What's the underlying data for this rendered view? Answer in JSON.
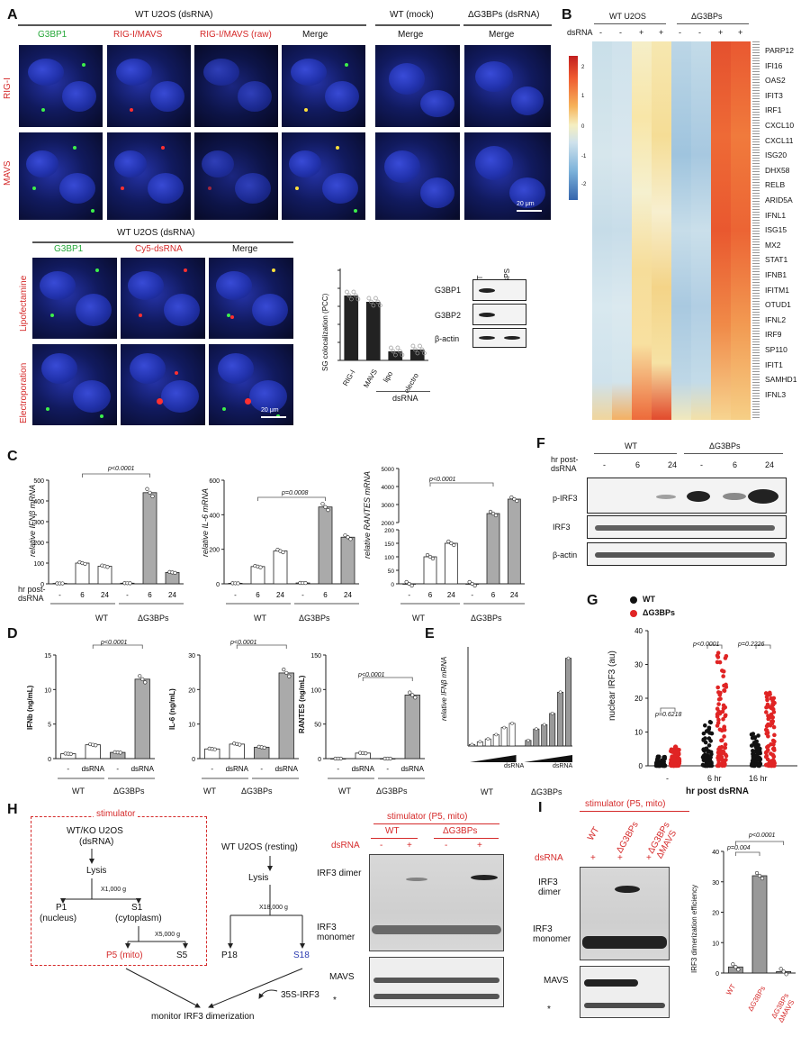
{
  "panels": [
    "A",
    "B",
    "C",
    "D",
    "E",
    "F",
    "G",
    "H",
    "I"
  ],
  "panelA": {
    "title_wt": "WT U2OS (dsRNA)",
    "title_mock": "WT (mock)",
    "title_ko": "ΔG3BPs (dsRNA)",
    "columns": [
      "G3BP1",
      "RIG-I/MAVS",
      "RIG-I/MAVS (raw)",
      "Merge"
    ],
    "merge": "Merge",
    "rows": [
      "RIG-I",
      "MAVS"
    ],
    "scale": "20 μm",
    "title_lower": "WT U2OS (dsRNA)",
    "lower_columns": [
      "G3BP1",
      "Cy5-dsRNA",
      "Merge"
    ],
    "lower_rows": [
      "Lipofectamine",
      "Electroporation"
    ],
    "chart_ylabel": "SG colocalization (PCC)",
    "chart_cats": [
      "RIG-I",
      "MAVS",
      "lipo",
      "electro"
    ],
    "chart_group": "dsRNA",
    "wb_lanes": [
      "WT",
      "ΔG3BPS"
    ],
    "wb_rows": [
      "G3BP1",
      "G3BP2",
      "β-actin"
    ]
  },
  "panelB": {
    "groups": [
      "WT U2OS",
      "ΔG3BPs"
    ],
    "dsrna_label": "dsRNA",
    "lanes": [
      "-",
      "-",
      "+",
      "+",
      "-",
      "-",
      "+",
      "+"
    ],
    "scale_ticks": [
      "2",
      "1",
      "0",
      "-1",
      "-2"
    ],
    "genes": [
      "PARP12",
      "IFI16",
      "OAS2",
      "IFIT3",
      "IRF1",
      "CXCL10",
      "CXCL11",
      "ISG20",
      "DHX58",
      "RELB",
      "ARID5A",
      "IFNL1",
      "ISG15",
      "MX2",
      "STAT1",
      "IFNB1",
      "IFITM1",
      "OTUD1",
      "IFNL2",
      "IRF9",
      "SP110",
      "IFIT1",
      "SAMHD1",
      "IFNL3"
    ]
  },
  "panelC": {
    "plots": [
      {
        "ylabel": "relative IFNβ mRNA",
        "p": "p<0.0001",
        "ticks": [
          "0",
          "100",
          "200",
          "300",
          "400",
          "500"
        ]
      },
      {
        "ylabel": "relative IL-6 mRNA",
        "p": "p=0.0008",
        "ticks": [
          "0",
          "200",
          "400",
          "600"
        ]
      },
      {
        "ylabel": "relative RANTES mRNA",
        "p": "p<0.0001",
        "ticks": [
          "0",
          "50",
          "100",
          "150",
          "200",
          "2000",
          "3000",
          "4000",
          "5000"
        ]
      }
    ],
    "hr_label": "hr post-dsRNA",
    "lanes": [
      "-",
      "6",
      "24",
      "-",
      "6",
      "24"
    ],
    "groups": [
      "WT",
      "ΔG3BPs"
    ]
  },
  "panelD": {
    "plots": [
      {
        "ylabel": "IFNb (ng/mL)",
        "p": "p<0.0001",
        "ticks": [
          "0",
          "5",
          "10",
          "15"
        ]
      },
      {
        "ylabel": "IL-6 (ng/mL)",
        "p": "p<0.0001",
        "ticks": [
          "0",
          "10",
          "20",
          "30"
        ]
      },
      {
        "ylabel": "RANTES (ng/mL)",
        "p": "p<0.0001",
        "ticks": [
          "0",
          "50",
          "100",
          "150"
        ]
      }
    ],
    "lanes": [
      "-",
      "dsRNA",
      "-",
      "dsRNA"
    ],
    "groups": [
      "WT",
      "ΔG3BPs"
    ]
  },
  "panelE": {
    "ylabel": "relative IFNβ mRNA",
    "groups": [
      "WT",
      "ΔG3BPs"
    ],
    "wedge": "dsRNA"
  },
  "panelF": {
    "hr_label": "hr post-dsRNA",
    "groups": [
      "WT",
      "ΔG3BPs"
    ],
    "lanes": [
      "-",
      "6",
      "24",
      "-",
      "6",
      "24"
    ],
    "rows": [
      "p-IRF3",
      "IRF3",
      "β-actin"
    ]
  },
  "panelG": {
    "legend": [
      "WT",
      "ΔG3BPs"
    ],
    "ylabel": "nuclear IRF3 (au)",
    "xlabel": "hr post dsRNA",
    "xticks": [
      "-",
      "6 hr",
      "16 hr"
    ],
    "yticks": [
      "0",
      "10",
      "20",
      "30",
      "40"
    ],
    "pvals": [
      "p=0.6218",
      "p<0.0001",
      "p=0.2226"
    ]
  },
  "panelH": {
    "stimulator": "stimulator",
    "flow": [
      "WT/KO U2OS",
      "(dsRNA)",
      "Lysis",
      "X1,000 g",
      "P1",
      "S1",
      "(nucleus)",
      "(cytoplasm)",
      "X5,000 g",
      "P5 (mito)",
      "S5"
    ],
    "flow_right": [
      "WT U2OS (resting)",
      "Lysis",
      "X18,000 g",
      "P18",
      "S18"
    ],
    "irf3": "35S-IRF3",
    "monitor": "monitor IRF3 dimerization",
    "gel_title": "stimulator (P5, mito)",
    "gel_groups": [
      "WT",
      "ΔG3BPs"
    ],
    "dsrna": "dsRNA",
    "lanes": [
      "-",
      "+",
      "-",
      "+"
    ],
    "dimer": "IRF3 dimer",
    "monomer": "IRF3 monomer",
    "mavs": "MAVS",
    "star": "*"
  },
  "panelI": {
    "gel_title": "stimulator (P5, mito)",
    "lanes": [
      "WT",
      "ΔG3BPs",
      "ΔG3BPs ΔMAVS"
    ],
    "dsrna": "dsRNA",
    "signs": [
      "+",
      "+",
      "+"
    ],
    "dimer": "IRF3 dimer",
    "monomer": "IRF3 monomer",
    "mavs": "MAVS",
    "star": "*",
    "ylabel": "IRF3 dimerization efficiency",
    "yticks": [
      "0",
      "10",
      "20",
      "30",
      "40"
    ],
    "pvals": [
      "p=0.004",
      "p<0.0001"
    ]
  },
  "chart_data": [
    {
      "type": "bar",
      "categories": [
        "RIG-I",
        "MAVS",
        "lipo",
        "electro"
      ],
      "values": [
        0.72,
        0.65,
        0.1,
        0.12
      ],
      "ylabel": "SG colocalization (PCC)",
      "ylim": [
        0,
        1.0
      ]
    },
    {
      "type": "bar",
      "categories": [
        "WT -",
        "WT 6",
        "WT 24",
        "ΔG3BPs -",
        "ΔG3BPs 6",
        "ΔG3BPs 24"
      ],
      "values": [
        2,
        100,
        85,
        3,
        440,
        55
      ],
      "ylabel": "relative IFNβ mRNA",
      "ylim": [
        0,
        500
      ]
    },
    {
      "type": "bar",
      "categories": [
        "WT -",
        "WT 6",
        "WT 24",
        "ΔG3BPs -",
        "ΔG3BPs 6",
        "ΔG3BPs 24"
      ],
      "values": [
        3,
        100,
        190,
        5,
        445,
        270
      ],
      "ylabel": "relative IL-6 mRNA",
      "ylim": [
        0,
        600
      ]
    },
    {
      "type": "bar",
      "categories": [
        "WT -",
        "WT 6",
        "WT 24",
        "ΔG3BPs -",
        "ΔG3BPs 6",
        "ΔG3BPs 24"
      ],
      "values": [
        0,
        100,
        150,
        0,
        2500,
        3300
      ],
      "ylabel": "relative RANTES mRNA"
    },
    {
      "type": "bar",
      "categories": [
        "WT -",
        "WT dsRNA",
        "ΔG3BPs -",
        "ΔG3BPs dsRNA"
      ],
      "values": [
        0.7,
        2.0,
        0.9,
        11.5
      ],
      "ylabel": "IFNb (ng/mL)",
      "ylim": [
        0,
        15
      ]
    },
    {
      "type": "bar",
      "categories": [
        "WT -",
        "WT dsRNA",
        "ΔG3BPs -",
        "ΔG3BPs dsRNA"
      ],
      "values": [
        2.8,
        4.2,
        3.3,
        24.8
      ],
      "ylabel": "IL-6 (ng/mL)",
      "ylim": [
        0,
        30
      ]
    },
    {
      "type": "bar",
      "categories": [
        "WT -",
        "WT dsRNA",
        "ΔG3BPs -",
        "ΔG3BPs dsRNA"
      ],
      "values": [
        0,
        8,
        0,
        92
      ],
      "ylabel": "RANTES (ng/mL)",
      "ylim": [
        0,
        150
      ]
    },
    {
      "type": "bar",
      "categories": [
        "WT",
        "WT",
        "WT",
        "WT",
        "WT",
        "WT",
        "ΔG3BPs",
        "ΔG3BPs",
        "ΔG3BPs",
        "ΔG3BPs",
        "ΔG3BPs",
        "ΔG3BPs"
      ],
      "values": [
        0.1,
        0.3,
        0.5,
        0.8,
        1.3,
        1.6,
        0.4,
        1.2,
        1.5,
        2.3,
        3.8,
        6.2
      ],
      "ylabel": "relative IFNβ mRNA"
    },
    {
      "type": "bar",
      "categories": [
        "WT",
        "ΔG3BPs",
        "ΔG3BPs ΔMAVS"
      ],
      "values": [
        2,
        32,
        0.5
      ],
      "ylabel": "IRF3 dimerization efficiency",
      "ylim": [
        0,
        40
      ]
    }
  ]
}
